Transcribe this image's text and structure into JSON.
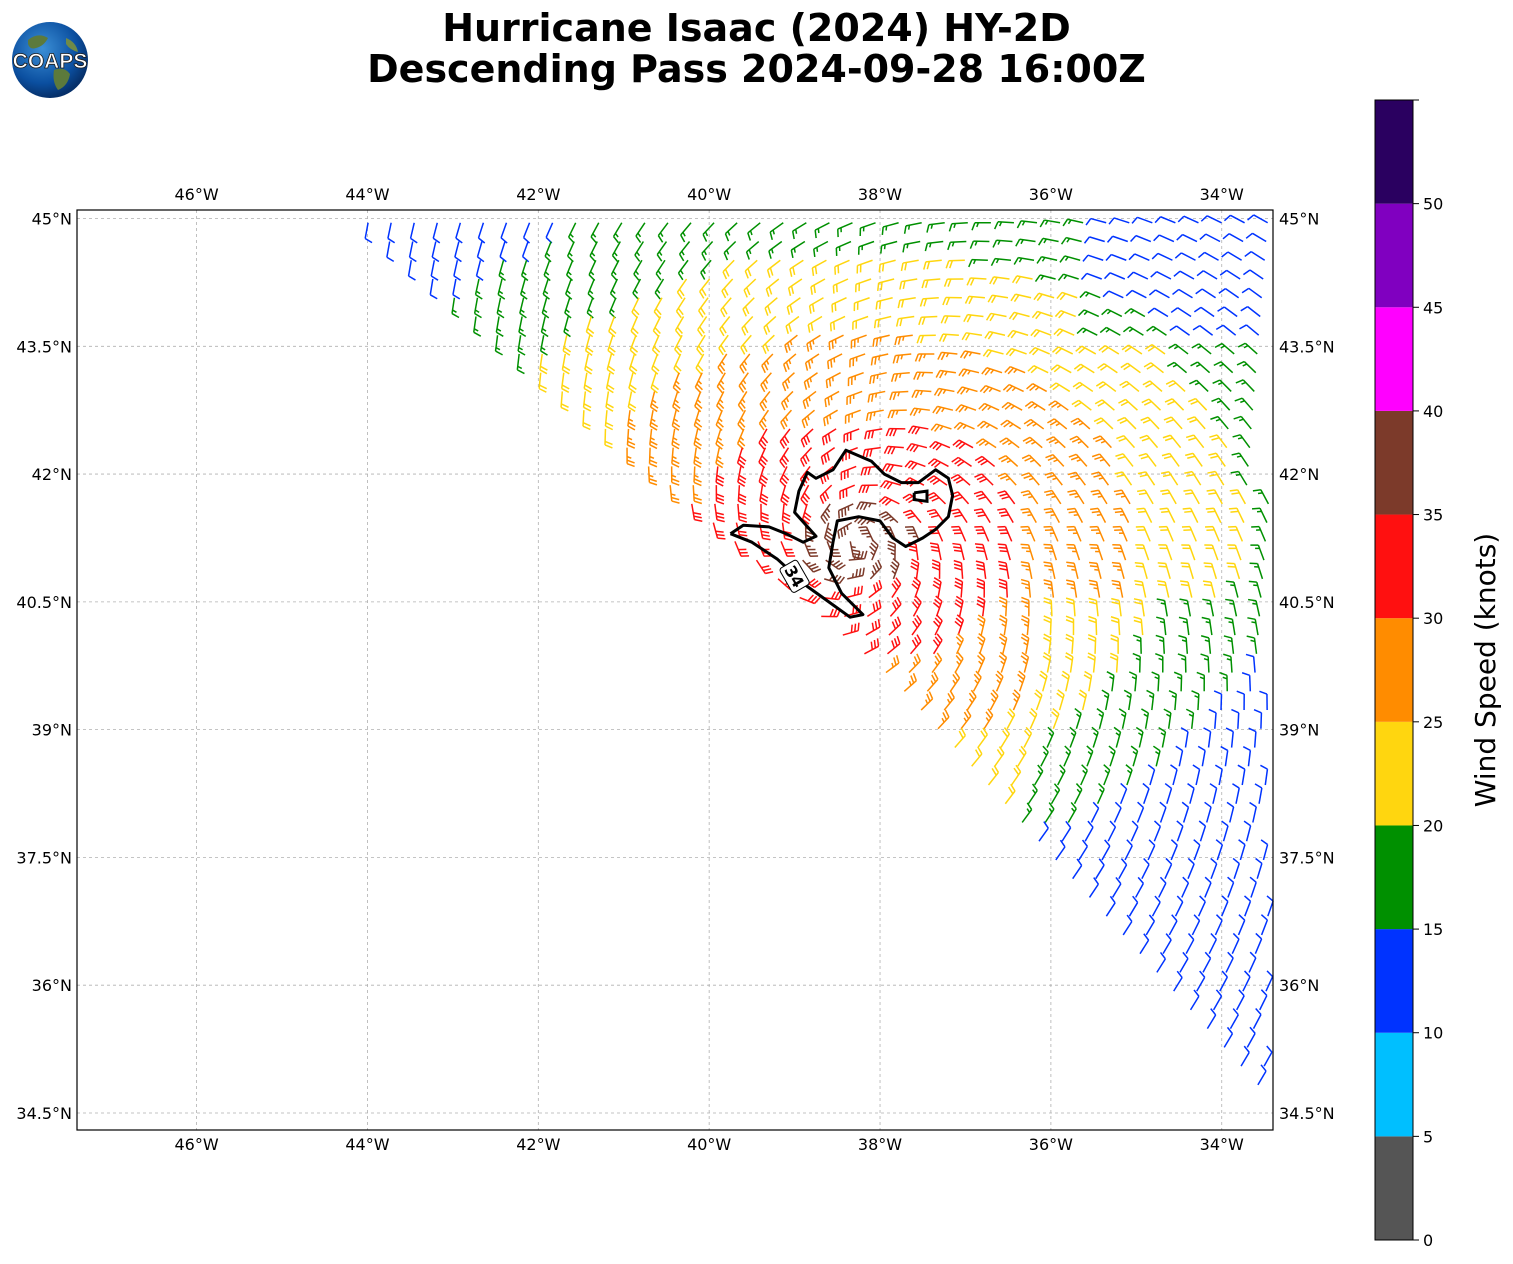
{
  "title": {
    "line1": "Hurricane Isaac (2024) HY-2D",
    "line2": "Descending Pass 2024-09-28 16:00Z"
  },
  "logo": {
    "text": "COAPS",
    "icon": "globe-logo-icon"
  },
  "map": {
    "lon_range": [
      -47.4,
      -33.4
    ],
    "lat_range": [
      34.3,
      45.1
    ],
    "lon_ticks": [
      {
        "value": -46,
        "label": "46°W"
      },
      {
        "value": -44,
        "label": "44°W"
      },
      {
        "value": -42,
        "label": "42°W"
      },
      {
        "value": -40,
        "label": "40°W"
      },
      {
        "value": -38,
        "label": "38°W"
      },
      {
        "value": -36,
        "label": "36°W"
      },
      {
        "value": -34,
        "label": "34°W"
      }
    ],
    "lat_ticks": [
      {
        "value": 45,
        "label": "45°N"
      },
      {
        "value": 43.5,
        "label": "43.5°N"
      },
      {
        "value": 42,
        "label": "42°N"
      },
      {
        "value": 40.5,
        "label": "40.5°N"
      },
      {
        "value": 39,
        "label": "39°N"
      },
      {
        "value": 37.5,
        "label": "37.5°N"
      },
      {
        "value": 36,
        "label": "36°N"
      },
      {
        "value": 34.5,
        "label": "34.5°N"
      }
    ],
    "grid": true,
    "swath": {
      "description": "descending scatterometer swath; wind barbs colored by speed",
      "edge_west": [
        [
          -44.1,
          45.0
        ],
        [
          -37.9,
          39.6
        ],
        [
          -33.6,
          34.8
        ]
      ],
      "edge_east": [
        [
          -33.4,
          45.0
        ],
        [
          -33.4,
          35.2
        ]
      ]
    },
    "contour": {
      "level_label": "34",
      "level": 34,
      "outline": [
        [
          -39.75,
          41.3
        ],
        [
          -39.6,
          41.4
        ],
        [
          -39.3,
          41.38
        ],
        [
          -39.1,
          41.3
        ],
        [
          -38.9,
          41.2
        ],
        [
          -38.75,
          41.27
        ],
        [
          -39.0,
          41.55
        ],
        [
          -38.95,
          41.8
        ],
        [
          -38.85,
          42.02
        ],
        [
          -38.75,
          41.95
        ],
        [
          -38.55,
          42.05
        ],
        [
          -38.4,
          42.28
        ],
        [
          -38.1,
          42.15
        ],
        [
          -37.95,
          42.0
        ],
        [
          -37.75,
          41.9
        ],
        [
          -37.55,
          41.9
        ],
        [
          -37.35,
          42.05
        ],
        [
          -37.2,
          41.95
        ],
        [
          -37.15,
          41.75
        ],
        [
          -37.2,
          41.5
        ],
        [
          -37.35,
          41.35
        ],
        [
          -37.5,
          41.25
        ],
        [
          -37.7,
          41.15
        ],
        [
          -37.85,
          41.25
        ],
        [
          -38.0,
          41.45
        ],
        [
          -38.25,
          41.5
        ],
        [
          -38.5,
          41.45
        ],
        [
          -38.55,
          41.2
        ],
        [
          -38.6,
          40.9
        ],
        [
          -38.45,
          40.6
        ],
        [
          -38.2,
          40.35
        ],
        [
          -38.35,
          40.32
        ],
        [
          -38.6,
          40.5
        ],
        [
          -38.85,
          40.68
        ],
        [
          -39.2,
          41.0
        ],
        [
          -39.5,
          41.2
        ],
        [
          -39.75,
          41.3
        ]
      ],
      "inner_loop": [
        [
          -37.6,
          41.78
        ],
        [
          -37.45,
          41.8
        ],
        [
          -37.45,
          41.68
        ],
        [
          -37.6,
          41.7
        ],
        [
          -37.6,
          41.78
        ]
      ],
      "label_position": [
        -39.0,
        40.8
      ]
    }
  },
  "colorbar": {
    "label": "Wind Speed (knots)",
    "bins": [
      {
        "from": 0,
        "to": 5,
        "color": "#555555"
      },
      {
        "from": 5,
        "to": 10,
        "color": "#00bfff"
      },
      {
        "from": 10,
        "to": 15,
        "color": "#0033ff"
      },
      {
        "from": 15,
        "to": 20,
        "color": "#009000"
      },
      {
        "from": 20,
        "to": 25,
        "color": "#ffd60f"
      },
      {
        "from": 25,
        "to": 30,
        "color": "#ff8c00"
      },
      {
        "from": 30,
        "to": 35,
        "color": "#ff1010"
      },
      {
        "from": 35,
        "to": 40,
        "color": "#7c3a2a"
      },
      {
        "from": 40,
        "to": 45,
        "color": "#ff00ff"
      },
      {
        "from": 45,
        "to": 50,
        "color": "#8000c0"
      },
      {
        "from": 50,
        "to": 55,
        "color": "#2a0060"
      }
    ],
    "tick_labels": [
      "0",
      "5",
      "10",
      "15",
      "20",
      "25",
      "30",
      "35",
      "40",
      "45",
      "50"
    ]
  }
}
